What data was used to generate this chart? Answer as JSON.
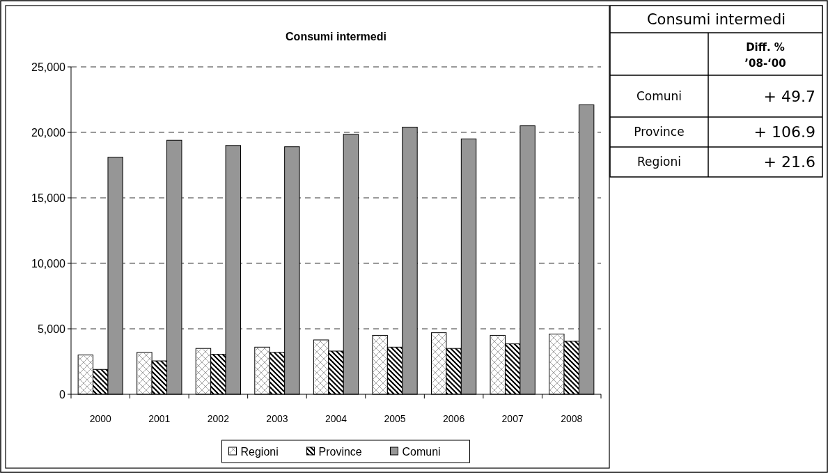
{
  "chart_data": [
    {
      "type": "bar",
      "title": "Consumi intermedi",
      "categories": [
        "2000",
        "2001",
        "2002",
        "2003",
        "2004",
        "2005",
        "2006",
        "2007",
        "2008"
      ],
      "series": [
        {
          "name": "Regioni",
          "color": "#ffffff",
          "values": [
            3000,
            3200,
            3500,
            3600,
            4150,
            4500,
            4700,
            4500,
            4600
          ]
        },
        {
          "name": "Province",
          "color": "#000000",
          "values": [
            1900,
            2550,
            3050,
            3200,
            3300,
            3600,
            3500,
            3850,
            4050
          ]
        },
        {
          "name": "Comuni",
          "color": "#969696",
          "values": [
            18100,
            19400,
            19000,
            18900,
            19850,
            20400,
            19500,
            20500,
            22100
          ]
        }
      ],
      "ylim": [
        0,
        25000
      ],
      "yticks": [
        {
          "value": 0,
          "label": "0"
        },
        {
          "value": 5000,
          "label": "5,000"
        },
        {
          "value": 10000,
          "label": "10,000"
        },
        {
          "value": 15000,
          "label": "15,000"
        },
        {
          "value": 20000,
          "label": "20,000"
        },
        {
          "value": 25000,
          "label": "25,000"
        }
      ],
      "grid": "y",
      "legend": "bottom"
    },
    {
      "type": "other",
      "title": "Consumi intermedi",
      "annotations": [
        "Diff. %",
        "’08-‘00"
      ],
      "categories": [
        "Comuni",
        "Province",
        "Regioni"
      ],
      "value_labels": [
        "+ 49.7",
        "+ 106.9",
        "+ 21.6"
      ]
    }
  ]
}
